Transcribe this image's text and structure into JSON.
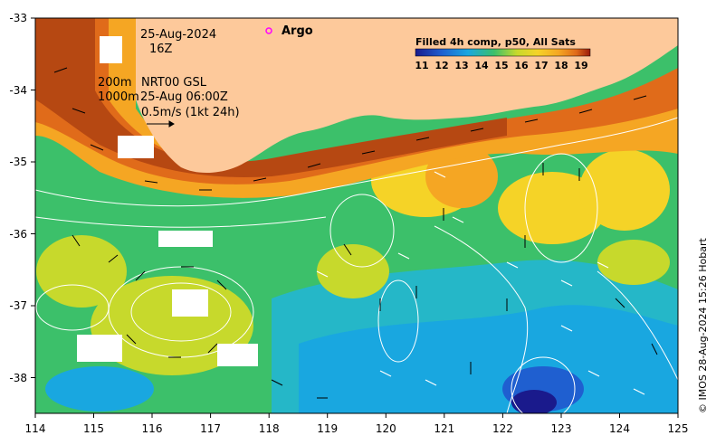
{
  "map": {
    "lon_ticks": [
      "114",
      "115",
      "116",
      "117",
      "118",
      "119",
      "120",
      "121",
      "122",
      "123",
      "124",
      "125"
    ],
    "lat_ticks": [
      "-33",
      "-34",
      "-35",
      "-36",
      "-37",
      "-38"
    ],
    "colors": {
      "land": "#fdc99b",
      "cold": "#1f5fd0",
      "cool": "#19a7e0",
      "mid": "#3cc06a",
      "warm": "#f5a623",
      "hot": "#b64812"
    }
  },
  "annotations": {
    "date": "25-Aug-2024",
    "hour": "16Z",
    "depth_200": "200m",
    "source": "NRT00 GSL",
    "depth_1000": "1000m",
    "valid": "25-Aug 06:00Z",
    "scale": "0.5m/s (1kt 24h)"
  },
  "legend": {
    "argo_label": "Argo",
    "argo_color": "#ff00ff"
  },
  "colorbar": {
    "title": "Filled 4h comp, p50, All Sats",
    "ticks": [
      "11",
      "12",
      "13",
      "14",
      "15",
      "16",
      "17",
      "18",
      "19"
    ]
  },
  "credit": "© IMOS 28-Aug-2024 15:26 Hobart"
}
